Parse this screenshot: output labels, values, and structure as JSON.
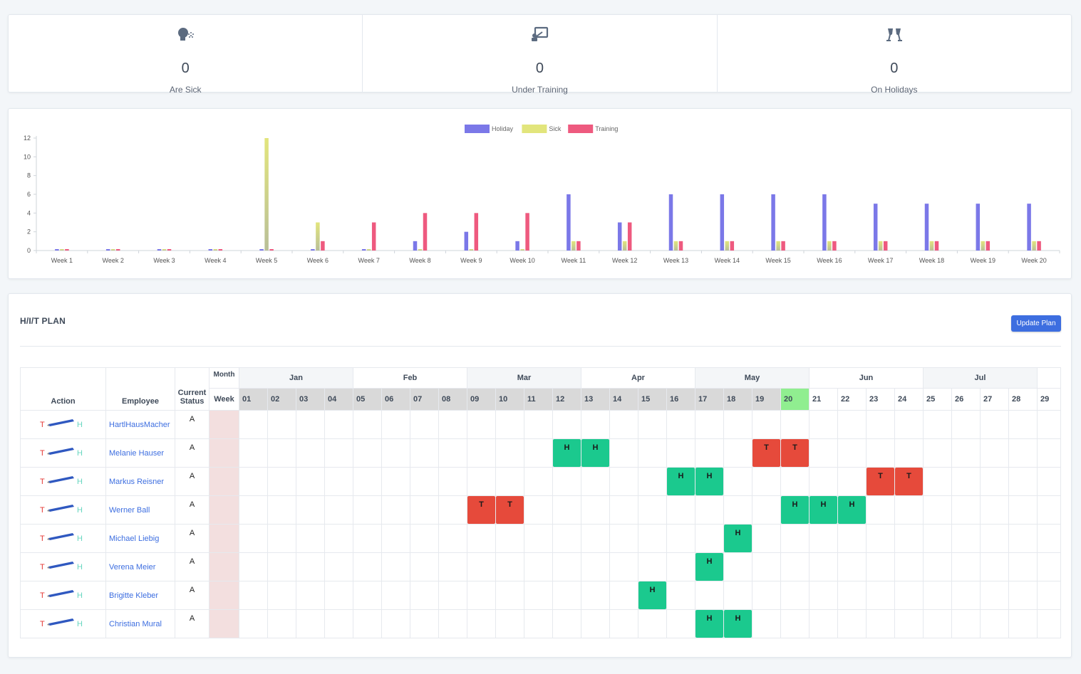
{
  "stats": [
    {
      "icon": "sick-icon",
      "value": "0",
      "label": "Are Sick"
    },
    {
      "icon": "training-icon",
      "value": "0",
      "label": "Under Training"
    },
    {
      "icon": "holiday-icon",
      "value": "0",
      "label": "On Holidays"
    }
  ],
  "chart_data": {
    "type": "bar",
    "categories": [
      "Week 1",
      "Week 2",
      "Week 3",
      "Week 4",
      "Week 5",
      "Week 6",
      "Week 7",
      "Week 8",
      "Week 9",
      "Week 10",
      "Week 11",
      "Week 12",
      "Week 13",
      "Week 14",
      "Week 15",
      "Week 16",
      "Week 17",
      "Week 18",
      "Week 19",
      "Week 20"
    ],
    "series": [
      {
        "name": "Holiday",
        "color": "#7b78e8",
        "values": [
          0,
          0,
          0,
          0,
          0,
          0,
          0,
          1,
          2,
          1,
          6,
          3,
          6,
          6,
          6,
          6,
          5,
          5,
          5,
          5
        ]
      },
      {
        "name": "Sick",
        "color": "#e2e57c",
        "values": [
          0,
          0,
          0,
          0,
          12,
          3,
          0,
          0,
          0,
          0,
          1,
          1,
          1,
          1,
          1,
          1,
          1,
          1,
          1,
          1
        ]
      },
      {
        "name": "Training",
        "color": "#ee5a7f",
        "values": [
          0,
          0,
          0,
          0,
          0,
          1,
          3,
          4,
          4,
          4,
          1,
          3,
          1,
          1,
          1,
          1,
          1,
          1,
          1,
          1
        ]
      }
    ],
    "y_ticks": [
      "0",
      "2",
      "4",
      "6",
      "8",
      "10",
      "12"
    ],
    "ylim": [
      0,
      12
    ],
    "legend_position": "top-center",
    "grid": false
  },
  "plan": {
    "title": "H/I/T PLAN",
    "update_label": "Update Plan",
    "headers": {
      "action": "Action",
      "employee": "Employee",
      "status": "Current Status",
      "month": "Month",
      "week": "Week"
    },
    "months": [
      "Jan",
      "Feb",
      "Mar",
      "Apr",
      "May",
      "Jun",
      "Jul"
    ],
    "weeks": [
      "01",
      "02",
      "03",
      "04",
      "05",
      "06",
      "07",
      "08",
      "09",
      "10",
      "11",
      "12",
      "13",
      "14",
      "15",
      "16",
      "17",
      "18",
      "19",
      "20",
      "21",
      "22",
      "23",
      "24",
      "25",
      "26",
      "27",
      "28",
      "29"
    ],
    "current_week": "20",
    "action_t": "T",
    "action_h": "H",
    "rows": [
      {
        "name": "HartlHausMacher",
        "status": "A",
        "entries": []
      },
      {
        "name": "Melanie Hauser",
        "status": "A",
        "entries": [
          {
            "week": "12",
            "type": "H"
          },
          {
            "week": "13",
            "type": "H"
          },
          {
            "week": "19",
            "type": "T"
          },
          {
            "week": "20",
            "type": "T"
          }
        ]
      },
      {
        "name": "Markus Reisner",
        "status": "A",
        "entries": [
          {
            "week": "16",
            "type": "H"
          },
          {
            "week": "17",
            "type": "H"
          },
          {
            "week": "23",
            "type": "T"
          },
          {
            "week": "24",
            "type": "T"
          }
        ]
      },
      {
        "name": "Werner Ball",
        "status": "A",
        "entries": [
          {
            "week": "09",
            "type": "T"
          },
          {
            "week": "10",
            "type": "T"
          },
          {
            "week": "20",
            "type": "H"
          },
          {
            "week": "21",
            "type": "H"
          },
          {
            "week": "22",
            "type": "H"
          }
        ]
      },
      {
        "name": "Michael Liebig",
        "status": "A",
        "entries": [
          {
            "week": "18",
            "type": "H"
          }
        ]
      },
      {
        "name": "Verena Meier",
        "status": "A",
        "entries": [
          {
            "week": "17",
            "type": "H"
          }
        ]
      },
      {
        "name": "Brigitte Kleber",
        "status": "A",
        "entries": [
          {
            "week": "15",
            "type": "H"
          }
        ]
      },
      {
        "name": "Christian Mural",
        "status": "A",
        "entries": [
          {
            "week": "17",
            "type": "H"
          },
          {
            "week": "18",
            "type": "H"
          }
        ]
      }
    ]
  }
}
